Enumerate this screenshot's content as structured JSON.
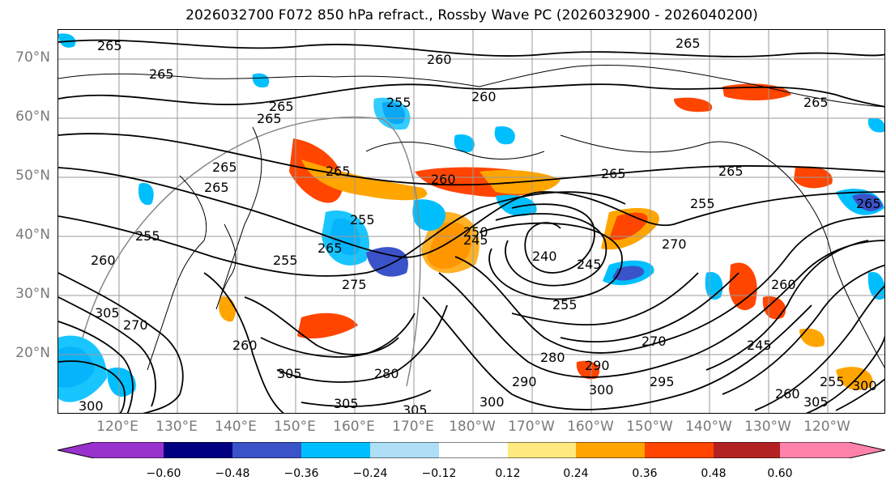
{
  "title": "2026032700 F072 850 hPa refract., Rossby Wave PC (2026032900 - 2026040200)",
  "map": {
    "lat_labels": [
      "70°N",
      "60°N",
      "50°N",
      "40°N",
      "30°N",
      "20°N"
    ],
    "lon_labels": [
      "120°E",
      "130°E",
      "140°E",
      "150°E",
      "160°E",
      "170°E",
      "180°W",
      "170°W",
      "160°W",
      "150°W",
      "140°W",
      "130°W",
      "120°W"
    ],
    "contour_labels": [
      "265",
      "255",
      "265",
      "260",
      "265",
      "260",
      "265",
      "265",
      "265",
      "255",
      "265",
      "265",
      "255",
      "260",
      "265",
      "260",
      "265",
      "265",
      "255",
      "245",
      "270",
      "245",
      "255",
      "270",
      "280",
      "290",
      "300",
      "305",
      "295",
      "260",
      "305",
      "300",
      "305",
      "280",
      "305",
      "305",
      "265",
      "260",
      "260",
      "275",
      "300",
      "255",
      "240",
      "245",
      "250",
      "300",
      "290",
      "270",
      "265",
      "255"
    ],
    "frame_color": "#000000"
  },
  "colorbar": {
    "colors": [
      "#9932cc",
      "#000080",
      "#3a53c9",
      "#00bfff",
      "#aedff7",
      "#ffffff",
      "#ffea80",
      "#ffa500",
      "#ff4500",
      "#b22222",
      "#ff82ab"
    ],
    "tick_labels": [
      "−0.60",
      "−0.48",
      "−0.36",
      "−0.24",
      "−0.12",
      "0.12",
      "0.24",
      "0.36",
      "0.48",
      "0.60"
    ]
  }
}
